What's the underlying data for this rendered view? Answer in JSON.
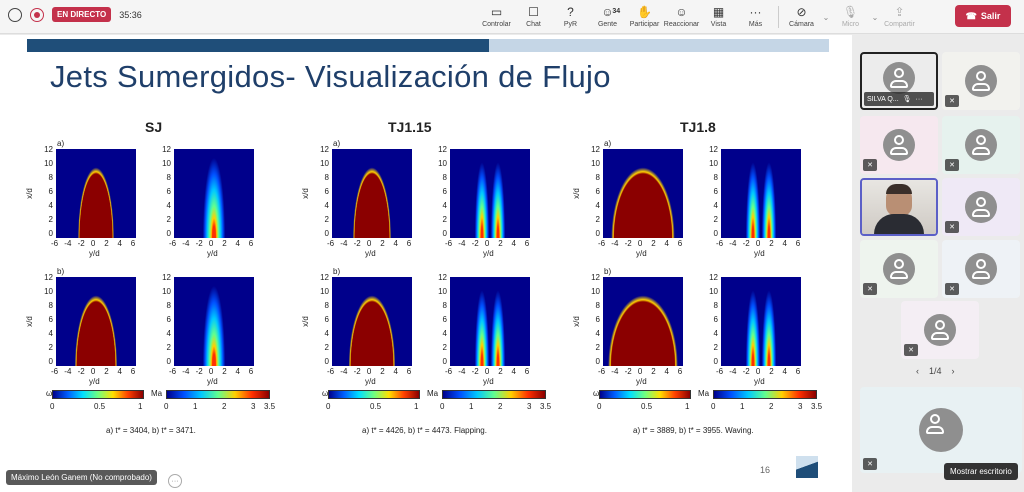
{
  "topbar": {
    "live_label": "EN DIRECTO",
    "timer": "35:36",
    "tools": [
      {
        "label": "Controlar",
        "icon": "share-screen-icon",
        "glyph": "▭"
      },
      {
        "label": "Chat",
        "icon": "chat-icon",
        "glyph": "☐"
      },
      {
        "label": "PyR",
        "icon": "qa-icon",
        "glyph": "⍰"
      },
      {
        "label": "Gente",
        "icon": "people-icon",
        "glyph": "☺",
        "badge": "34"
      },
      {
        "label": "Participar",
        "icon": "raise-hand-icon",
        "glyph": "✋"
      },
      {
        "label": "Reaccionar",
        "icon": "react-icon",
        "glyph": "☺"
      },
      {
        "label": "Vista",
        "icon": "view-icon",
        "glyph": "▦"
      },
      {
        "label": "Más",
        "icon": "more-icon",
        "glyph": "···"
      }
    ],
    "camera_label": "Cámara",
    "mic_label": "Micro",
    "share_label": "Compartir",
    "leave_label": "Salir"
  },
  "slide": {
    "title": "Jets Sumergidos- Visualización de Flujo",
    "columns": [
      {
        "heading": "SJ",
        "caption": "a) t* = 3404, b) t* = 3471."
      },
      {
        "heading": "TJ1.15",
        "caption": "a) t* = 4426, b) t* = 4473. Flapping."
      },
      {
        "heading": "TJ1.8",
        "caption": "a) t* = 3889, b) t* = 3955. Waving."
      }
    ],
    "panel_a": "a)",
    "panel_b": "b)",
    "y_axis_label": "x/d",
    "x_axis_label": "y/d",
    "y_ticks": [
      "12",
      "10",
      "8",
      "6",
      "4",
      "2",
      "0"
    ],
    "x_ticks": [
      "-6",
      "-4",
      "-2",
      "0",
      "2",
      "4",
      "6"
    ],
    "omega_label": "ω",
    "omega_ticks": [
      "0",
      "0.5",
      "1"
    ],
    "ma_label": "Ma",
    "ma_ticks": [
      "0",
      "1",
      "2",
      "3",
      "3.5"
    ],
    "page_number": "16"
  },
  "speaker_label": "Máximo León Ganem (No comprobado)",
  "sidebar": {
    "highlighted_name": "SILVA Q...",
    "pager": "1/4",
    "tooltip": "Mostrar escritorio"
  },
  "colors": {
    "accent": "#c4314b",
    "slide_title": "#1f3f6a",
    "jet_red": "#8b0000",
    "field_blue": "#00008b"
  }
}
